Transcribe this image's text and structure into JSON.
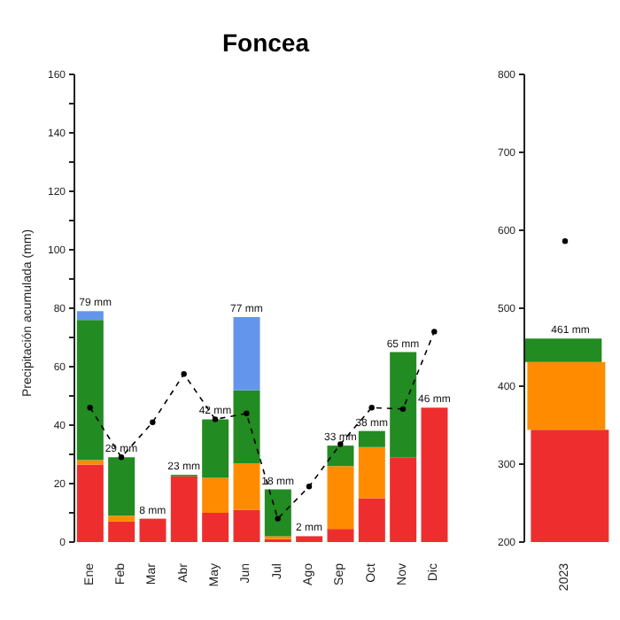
{
  "chart_data": [
    {
      "type": "bar",
      "title": "Foncea",
      "ylabel": "Precipitación acumulada (mm)",
      "stacked": true,
      "marker": "circle",
      "line_style": "dashed",
      "categories": [
        "Ene",
        "Feb",
        "Mar",
        "Abr",
        "May",
        "Jun",
        "Jul",
        "Ago",
        "Sep",
        "Oct",
        "Nov",
        "Dic"
      ],
      "series": [
        {
          "color": "#ee2e2e",
          "values": [
            26.5,
            7,
            8,
            22.5,
            10,
            11,
            1,
            2,
            4.5,
            15,
            29,
            46
          ]
        },
        {
          "color": "#ff8c00",
          "values": [
            1.5,
            2,
            null,
            null,
            12,
            16,
            1,
            null,
            21.5,
            17.5,
            null,
            null
          ]
        },
        {
          "color": "#228b22",
          "values": [
            48,
            20,
            null,
            0.5,
            20,
            25,
            16,
            null,
            7,
            5.5,
            36,
            null
          ]
        },
        {
          "color": "#6495ed",
          "values": [
            3,
            null,
            null,
            null,
            null,
            25,
            null,
            null,
            null,
            null,
            null,
            null
          ]
        },
        {
          "type": "line",
          "color": "#000000",
          "values": [
            46,
            29,
            41,
            57.5,
            42,
            44,
            8,
            19,
            33.5,
            46,
            45.5,
            72
          ]
        }
      ],
      "totals": [
        "79 mm",
        "29 mm",
        "8 mm",
        "23 mm",
        "42 mm",
        "77 mm",
        "18 mm",
        "2 mm",
        "33 mm",
        "38 mm",
        "65 mm",
        "46 mm"
      ],
      "ylim": [
        0,
        160
      ],
      "yticks": [
        0,
        {
          "value": 10,
          "label": null
        },
        20,
        {
          "value": 30,
          "label": null
        },
        40,
        {
          "value": 50,
          "label": null
        },
        60,
        {
          "value": 70,
          "label": null
        },
        80,
        {
          "value": 90,
          "label": null
        },
        100,
        {
          "value": 110,
          "label": null
        },
        120,
        {
          "value": 130,
          "label": null
        },
        140,
        {
          "value": 150,
          "label": null
        },
        160
      ]
    },
    {
      "type": "bar",
      "marker": "circle",
      "line_style": "dashed",
      "categories": [
        "2023"
      ],
      "series": [
        {
          "color": "#ee2e2e",
          "values": [
            344
          ]
        },
        {
          "color": "#ff8c00",
          "base": [
            344
          ],
          "values": [
            87
          ]
        },
        {
          "color": "#228b22",
          "base": [
            431
          ],
          "values": [
            30
          ]
        },
        {
          "type": "line",
          "color": "#000000",
          "values": [
            586
          ]
        }
      ],
      "totals": [
        "461 mm"
      ],
      "ylim": [
        200,
        800
      ],
      "yticks": [
        200,
        300,
        400,
        500,
        600,
        700,
        800
      ]
    }
  ]
}
